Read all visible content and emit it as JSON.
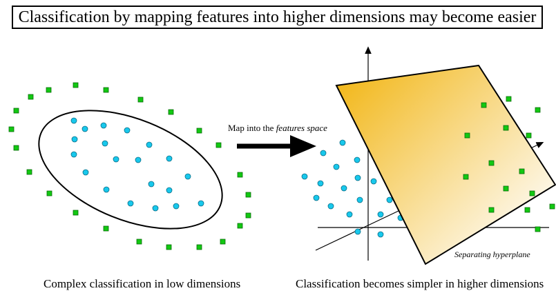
{
  "title": "Classification by mapping features into higher dimensions may become easier",
  "arrow_label": {
    "prefix": "Map into the",
    "italic": "features space"
  },
  "hyperplane_label": "Separating hyperplane",
  "captions": {
    "left": "Complex classification in low dimensions",
    "right": "Classification becomes simpler in higher dimensions"
  },
  "colors": {
    "circle_fill": "#18c8ec",
    "square_fill": "#12c812",
    "hyperplane_gradient_start": "#f2b81c",
    "hyperplane_gradient_end": "#fdf6e4"
  }
}
